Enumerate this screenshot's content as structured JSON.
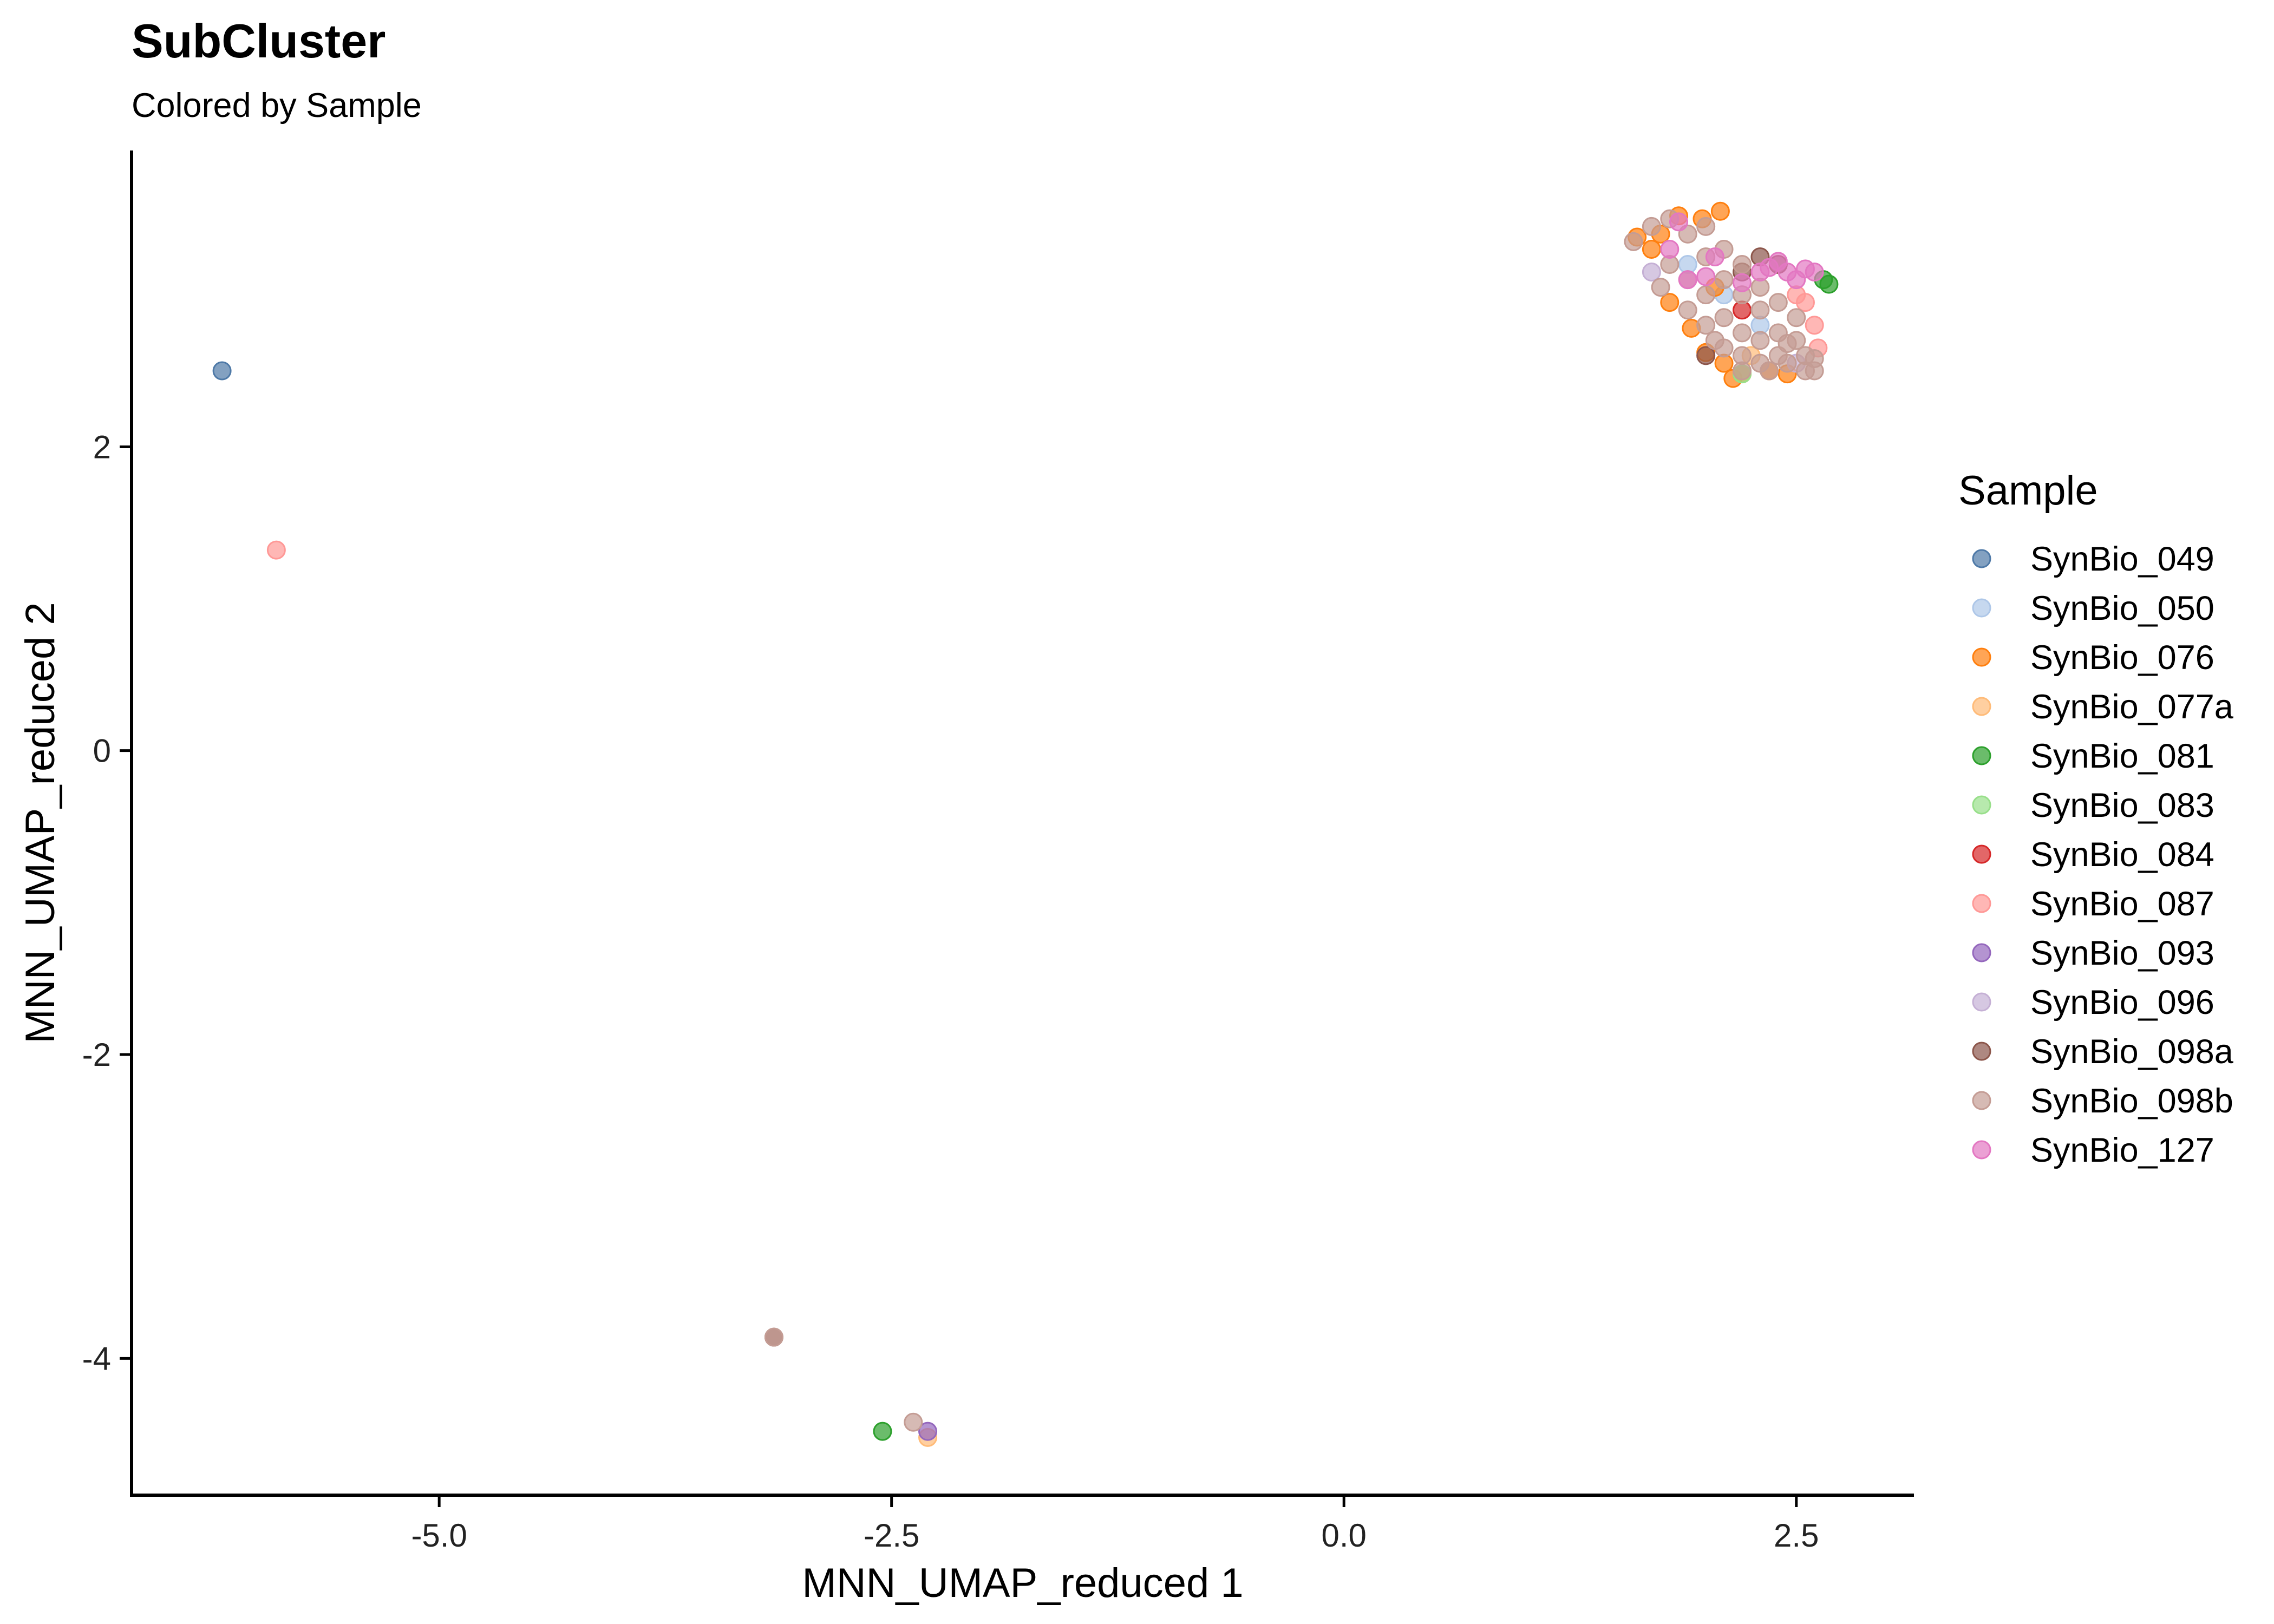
{
  "chart_data": {
    "type": "scatter",
    "title": "SubCluster",
    "subtitle": "Colored by Sample",
    "xlabel": "MNN_UMAP_reduced 1",
    "ylabel": "MNN_UMAP_reduced 2",
    "xlim": [
      -6.7,
      3.15
    ],
    "ylim": [
      -4.9,
      3.95
    ],
    "x_ticks": [
      -5.0,
      -2.5,
      0.0,
      2.5
    ],
    "x_tick_labels": [
      "-5.0",
      "-2.5",
      "0.0",
      "2.5"
    ],
    "y_ticks": [
      -4,
      -2,
      0,
      2
    ],
    "y_tick_labels": [
      "-4",
      "-2",
      "0",
      "2"
    ],
    "grid": false,
    "legend": {
      "title": "Sample",
      "position": "right"
    },
    "series": [
      {
        "name": "SynBio_049",
        "color": "#4E79A7",
        "points": [
          [
            -6.2,
            2.5
          ]
        ]
      },
      {
        "name": "SynBio_050",
        "color": "#AEC7E8",
        "points": [
          [
            1.9,
            3.2
          ],
          [
            2.1,
            3.0
          ],
          [
            2.3,
            2.8
          ]
        ]
      },
      {
        "name": "SynBio_076",
        "color": "#FF7F0E",
        "points": [
          [
            1.62,
            3.38
          ],
          [
            1.75,
            3.4
          ],
          [
            1.85,
            3.52
          ],
          [
            1.98,
            3.5
          ],
          [
            2.08,
            3.55
          ],
          [
            1.8,
            2.95
          ],
          [
            1.92,
            2.78
          ],
          [
            2.0,
            2.62
          ],
          [
            2.1,
            2.55
          ],
          [
            2.2,
            2.48
          ],
          [
            2.15,
            2.45
          ],
          [
            2.35,
            2.5
          ],
          [
            2.45,
            2.48
          ],
          [
            1.7,
            3.3
          ],
          [
            2.05,
            3.05
          ]
        ]
      },
      {
        "name": "SynBio_077a",
        "color": "#FFBB78",
        "points": [
          [
            -2.3,
            -4.52
          ],
          [
            2.25,
            2.6
          ]
        ]
      },
      {
        "name": "SynBio_081",
        "color": "#2CA02C",
        "points": [
          [
            -2.55,
            -4.48
          ],
          [
            2.65,
            3.1
          ],
          [
            2.68,
            3.07
          ]
        ]
      },
      {
        "name": "SynBio_083",
        "color": "#98DF8A",
        "points": [
          [
            2.2,
            2.48
          ]
        ]
      },
      {
        "name": "SynBio_084",
        "color": "#D62728",
        "points": [
          [
            2.2,
            2.9
          ]
        ]
      },
      {
        "name": "SynBio_087",
        "color": "#FF9896",
        "points": [
          [
            -5.9,
            1.32
          ],
          [
            2.55,
            2.95
          ],
          [
            2.6,
            2.8
          ],
          [
            2.62,
            2.65
          ],
          [
            2.5,
            3.0
          ]
        ]
      },
      {
        "name": "SynBio_093",
        "color": "#9467BD",
        "points": [
          [
            -2.3,
            -4.48
          ]
        ]
      },
      {
        "name": "SynBio_096",
        "color": "#C5B0D5",
        "points": [
          [
            1.7,
            3.15
          ],
          [
            2.5,
            2.55
          ]
        ]
      },
      {
        "name": "SynBio_098a",
        "color": "#8C564B",
        "points": [
          [
            -3.15,
            -3.86
          ],
          [
            2.3,
            3.25
          ],
          [
            2.4,
            3.2
          ],
          [
            2.2,
            3.15
          ],
          [
            2.0,
            2.6
          ]
        ]
      },
      {
        "name": "SynBio_098b",
        "color": "#C49C94",
        "points": [
          [
            -3.15,
            -3.86
          ],
          [
            -2.38,
            -4.42
          ],
          [
            1.6,
            3.35
          ],
          [
            1.7,
            3.45
          ],
          [
            1.8,
            3.5
          ],
          [
            1.9,
            3.4
          ],
          [
            2.0,
            3.45
          ],
          [
            1.8,
            3.2
          ],
          [
            1.9,
            3.1
          ],
          [
            2.0,
            3.25
          ],
          [
            2.1,
            3.3
          ],
          [
            1.9,
            2.9
          ],
          [
            2.0,
            3.0
          ],
          [
            2.1,
            3.1
          ],
          [
            2.2,
            3.0
          ],
          [
            2.0,
            2.8
          ],
          [
            2.1,
            2.85
          ],
          [
            2.2,
            2.75
          ],
          [
            2.3,
            2.9
          ],
          [
            2.1,
            2.65
          ],
          [
            2.2,
            2.6
          ],
          [
            2.3,
            2.7
          ],
          [
            2.4,
            2.75
          ],
          [
            2.2,
            2.5
          ],
          [
            2.3,
            2.55
          ],
          [
            2.4,
            2.6
          ],
          [
            2.5,
            2.7
          ],
          [
            2.35,
            2.5
          ],
          [
            2.45,
            2.55
          ],
          [
            2.55,
            2.6
          ],
          [
            2.55,
            2.5
          ],
          [
            2.6,
            2.5
          ],
          [
            2.5,
            2.85
          ],
          [
            2.4,
            2.95
          ],
          [
            2.3,
            3.05
          ],
          [
            2.2,
            3.2
          ],
          [
            1.75,
            3.05
          ],
          [
            2.05,
            2.7
          ],
          [
            2.45,
            2.68
          ],
          [
            2.6,
            2.58
          ]
        ]
      },
      {
        "name": "SynBio_127",
        "color": "#E377C2",
        "points": [
          [
            1.8,
            3.3
          ],
          [
            1.85,
            3.48
          ],
          [
            1.9,
            3.1
          ],
          [
            2.0,
            3.12
          ],
          [
            2.05,
            3.25
          ],
          [
            2.2,
            3.08
          ],
          [
            2.3,
            3.15
          ],
          [
            2.35,
            3.18
          ],
          [
            2.45,
            3.15
          ],
          [
            2.55,
            3.17
          ],
          [
            2.6,
            3.15
          ],
          [
            2.5,
            3.1
          ],
          [
            2.4,
            3.22
          ]
        ]
      }
    ]
  }
}
